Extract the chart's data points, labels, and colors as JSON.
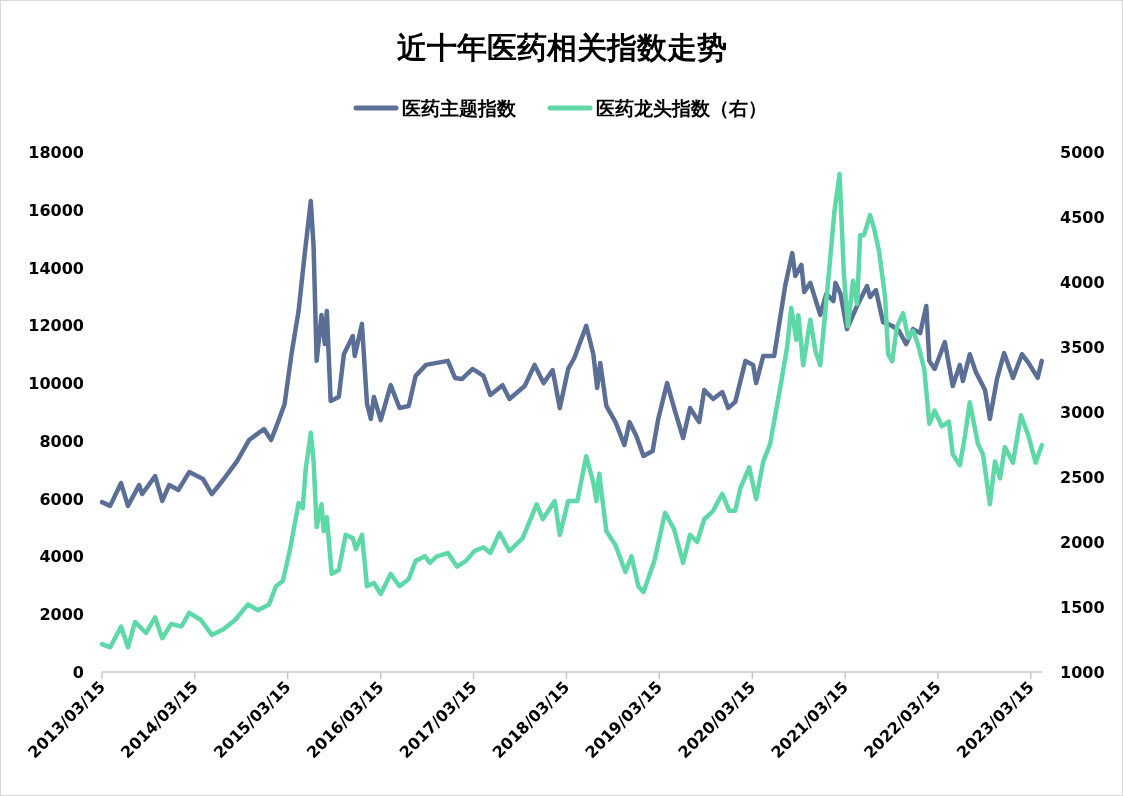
{
  "chart_data": {
    "type": "line",
    "title": "近十年医药相关指数走势",
    "legend": "top",
    "xlim": [
      "2013-03-15",
      "2023-04-28"
    ],
    "xticks": [
      {
        "value": "2013-03-15",
        "label": "2013/03/15"
      },
      {
        "value": "2014-03-15",
        "label": "2014/03/15"
      },
      {
        "value": "2015-03-15",
        "label": "2015/03/15"
      },
      {
        "value": "2016-03-15",
        "label": "2016/03/15"
      },
      {
        "value": "2017-03-15",
        "label": "2017/03/15"
      },
      {
        "value": "2018-03-15",
        "label": "2018/03/15"
      },
      {
        "value": "2019-03-15",
        "label": "2019/03/15"
      },
      {
        "value": "2020-03-15",
        "label": "2020/03/15"
      },
      {
        "value": "2021-03-15",
        "label": "2021/03/15"
      },
      {
        "value": "2022-03-15",
        "label": "2022/03/15"
      },
      {
        "value": "2023-03-15",
        "label": "2023/03/15"
      }
    ],
    "ylim": [
      0,
      18000
    ],
    "yticks": [
      0,
      2000,
      4000,
      6000,
      8000,
      10000,
      12000,
      14000,
      16000,
      18000
    ],
    "y2lim": [
      1000,
      5000
    ],
    "y2ticks": [
      1000,
      1500,
      2000,
      2500,
      3000,
      3500,
      4000,
      4500,
      5000
    ],
    "series": [
      {
        "name": "医药主题指数",
        "color": "#5a6e96",
        "x": [
          "2013-03-15",
          "2013-04-16",
          "2013-05-29",
          "2013-06-25",
          "2013-08-08",
          "2013-08-20",
          "2013-10-10",
          "2013-11-07",
          "2013-12-04",
          "2014-01-09",
          "2014-02-21",
          "2014-04-16",
          "2014-05-21",
          "2014-07-07",
          "2014-08-28",
          "2014-10-14",
          "2014-12-12",
          "2015-01-09",
          "2015-02-05",
          "2015-03-03",
          "2015-03-30",
          "2015-04-27",
          "2015-05-21",
          "2015-06-14",
          "2015-06-25",
          "2015-07-07",
          "2015-07-26",
          "2015-08-08",
          "2015-08-16",
          "2015-08-31",
          "2015-10-02",
          "2015-10-22",
          "2015-11-26",
          "2015-12-04",
          "2016-01-01",
          "2016-01-21",
          "2016-02-05",
          "2016-02-17",
          "2016-03-15",
          "2016-04-23",
          "2016-05-28",
          "2016-07-03",
          "2016-07-30",
          "2016-09-09",
          "2016-10-21",
          "2016-12-04",
          "2017-01-01",
          "2017-01-28",
          "2017-03-11",
          "2017-04-23",
          "2017-05-20",
          "2017-07-07",
          "2017-08-03",
          "2017-10-02",
          "2017-11-10",
          "2017-12-15",
          "2018-01-20",
          "2018-02-17",
          "2018-03-22",
          "2018-04-15",
          "2018-06-01",
          "2018-06-29",
          "2018-07-14",
          "2018-07-26",
          "2018-08-19",
          "2018-09-24",
          "2018-10-29",
          "2018-11-18",
          "2018-12-15",
          "2019-01-12",
          "2019-02-17",
          "2019-03-11",
          "2019-04-15",
          "2019-05-16",
          "2019-06-17",
          "2019-07-14",
          "2019-08-19",
          "2019-09-08",
          "2019-10-13",
          "2019-11-02",
          "2019-11-18",
          "2019-12-11",
          "2020-01-08",
          "2020-02-17",
          "2020-03-18",
          "2020-03-30",
          "2020-04-27",
          "2020-06-09",
          "2020-07-22",
          "2020-08-19",
          "2020-08-31",
          "2020-09-24",
          "2020-10-05",
          "2020-10-29",
          "2020-12-07",
          "2020-12-31",
          "2021-01-28",
          "2021-02-05",
          "2021-02-25",
          "2021-03-22",
          "2021-04-27",
          "2021-06-09",
          "2021-06-21",
          "2021-07-14",
          "2021-08-11",
          "2021-09-16",
          "2021-10-13",
          "2021-11-10",
          "2021-12-07",
          "2022-01-04",
          "2022-01-28",
          "2022-02-09",
          "2022-03-02",
          "2022-04-11",
          "2022-05-12",
          "2022-06-09",
          "2022-06-21",
          "2022-07-18",
          "2022-08-11",
          "2022-09-16",
          "2022-10-05",
          "2022-11-02",
          "2022-11-30",
          "2023-01-04",
          "2023-02-08",
          "2023-03-06",
          "2023-04-11",
          "2023-04-27"
        ],
        "values": [
          5880,
          5750,
          6540,
          5750,
          6470,
          6160,
          6780,
          5920,
          6470,
          6300,
          6920,
          6680,
          6160,
          6680,
          7300,
          8030,
          8410,
          8030,
          8650,
          9280,
          11000,
          12500,
          14470,
          16300,
          14710,
          10770,
          12360,
          11350,
          12500,
          9380,
          9520,
          11000,
          11630,
          10940,
          12050,
          9280,
          8760,
          9520,
          8720,
          9930,
          9140,
          9210,
          10250,
          10630,
          10700,
          10770,
          10180,
          10140,
          10490,
          10250,
          9590,
          9930,
          9450,
          9900,
          10630,
          10000,
          10450,
          9140,
          10490,
          10870,
          11980,
          11000,
          9830,
          10700,
          9210,
          8650,
          7860,
          8650,
          8170,
          7480,
          7650,
          8760,
          10000,
          9030,
          8100,
          9140,
          8650,
          9760,
          9450,
          9590,
          9690,
          9140,
          9350,
          10770,
          10630,
          10000,
          10940,
          10940,
          13360,
          14500,
          13710,
          14090,
          13150,
          13470,
          12360,
          13090,
          12840,
          13470,
          13090,
          11870,
          12600,
          13360,
          12980,
          13220,
          12110,
          11980,
          11800,
          11350,
          11870,
          11730,
          12670,
          10770,
          10490,
          11420,
          9900,
          10630,
          10070,
          11000,
          10380,
          9760,
          8760,
          10140,
          11040,
          10180,
          11000,
          10700,
          10180,
          10770
        ]
      },
      {
        "name": "医药龙头指数（右）",
        "color": "#5fd8a8",
        "axis": "y2",
        "x": [
          "2013-03-15",
          "2013-04-16",
          "2013-05-29",
          "2013-06-25",
          "2013-07-23",
          "2013-09-04",
          "2013-10-10",
          "2013-11-07",
          "2013-12-12",
          "2014-01-21",
          "2014-02-21",
          "2014-04-08",
          "2014-05-21",
          "2014-07-07",
          "2014-08-20",
          "2014-10-10",
          "2014-11-18",
          "2015-01-01",
          "2015-01-28",
          "2015-02-24",
          "2015-03-23",
          "2015-04-27",
          "2015-05-13",
          "2015-05-25",
          "2015-06-14",
          "2015-06-25",
          "2015-07-07",
          "2015-07-26",
          "2015-08-04",
          "2015-08-16",
          "2015-09-04",
          "2015-10-02",
          "2015-10-29",
          "2015-11-26",
          "2015-12-08",
          "2016-01-01",
          "2016-01-21",
          "2016-02-17",
          "2016-03-15",
          "2016-04-23",
          "2016-05-28",
          "2016-07-03",
          "2016-07-30",
          "2016-09-05",
          "2016-09-24",
          "2016-10-21",
          "2016-12-04",
          "2017-01-09",
          "2017-02-13",
          "2017-03-18",
          "2017-04-23",
          "2017-05-20",
          "2017-06-25",
          "2017-08-03",
          "2017-09-24",
          "2017-11-18",
          "2017-12-12",
          "2018-01-28",
          "2018-02-17",
          "2018-03-22",
          "2018-04-27",
          "2018-06-01",
          "2018-06-29",
          "2018-07-11",
          "2018-07-22",
          "2018-08-19",
          "2018-09-24",
          "2018-11-02",
          "2018-11-26",
          "2018-12-23",
          "2019-01-12",
          "2019-02-24",
          "2019-04-07",
          "2019-05-12",
          "2019-06-17",
          "2019-07-14",
          "2019-08-11",
          "2019-09-08",
          "2019-10-13",
          "2019-11-02",
          "2019-11-18",
          "2019-12-15",
          "2020-01-08",
          "2020-01-28",
          "2020-03-03",
          "2020-03-30",
          "2020-04-27",
          "2020-05-24",
          "2020-07-06",
          "2020-07-30",
          "2020-08-15",
          "2020-09-04",
          "2020-09-12",
          "2020-10-01",
          "2020-10-29",
          "2020-11-18",
          "2020-12-07",
          "2021-01-08",
          "2021-02-01",
          "2021-02-21",
          "2021-03-10",
          "2021-03-26",
          "2021-04-15",
          "2021-05-01",
          "2021-05-13",
          "2021-05-28",
          "2021-06-21",
          "2021-07-07",
          "2021-07-26",
          "2021-08-19",
          "2021-08-31",
          "2021-09-16",
          "2021-10-05",
          "2021-10-29",
          "2021-11-18",
          "2021-12-07",
          "2021-12-27",
          "2022-01-20",
          "2022-02-09",
          "2022-03-02",
          "2022-03-30",
          "2022-04-27",
          "2022-05-12",
          "2022-06-09",
          "2022-06-29",
          "2022-07-18",
          "2022-08-19",
          "2022-09-08",
          "2022-10-05",
          "2022-10-25",
          "2022-11-14",
          "2022-12-03",
          "2023-01-04",
          "2023-02-04",
          "2023-03-06",
          "2023-04-03",
          "2023-04-27"
        ],
        "values": [
          1215,
          1190,
          1350,
          1190,
          1385,
          1300,
          1420,
          1260,
          1370,
          1350,
          1455,
          1400,
          1285,
          1330,
          1400,
          1520,
          1475,
          1520,
          1660,
          1700,
          1930,
          2300,
          2260,
          2560,
          2840,
          2620,
          2115,
          2290,
          2085,
          2190,
          1755,
          1785,
          2055,
          2030,
          1945,
          2055,
          1660,
          1685,
          1600,
          1755,
          1660,
          1715,
          1855,
          1890,
          1840,
          1890,
          1915,
          1810,
          1855,
          1930,
          1960,
          1915,
          2070,
          1930,
          2030,
          2290,
          2175,
          2315,
          2055,
          2315,
          2315,
          2660,
          2455,
          2315,
          2525,
          2085,
          1975,
          1770,
          1890,
          1660,
          1615,
          1855,
          2225,
          2100,
          1840,
          2055,
          2000,
          2175,
          2240,
          2315,
          2370,
          2240,
          2240,
          2415,
          2575,
          2330,
          2620,
          2755,
          3225,
          3500,
          3800,
          3555,
          3745,
          3360,
          3710,
          3470,
          3360,
          4025,
          4545,
          4830,
          4060,
          3660,
          4010,
          3830,
          4360,
          4360,
          4515,
          4410,
          4240,
          3885,
          3445,
          3390,
          3660,
          3760,
          3570,
          3625,
          3515,
          3330,
          2910,
          3010,
          2890,
          2925,
          2675,
          2590,
          2815,
          3075,
          2755,
          2675,
          2290,
          2620,
          2490,
          2730,
          2610,
          2975,
          2815,
          2610,
          2745
        ]
      }
    ]
  }
}
